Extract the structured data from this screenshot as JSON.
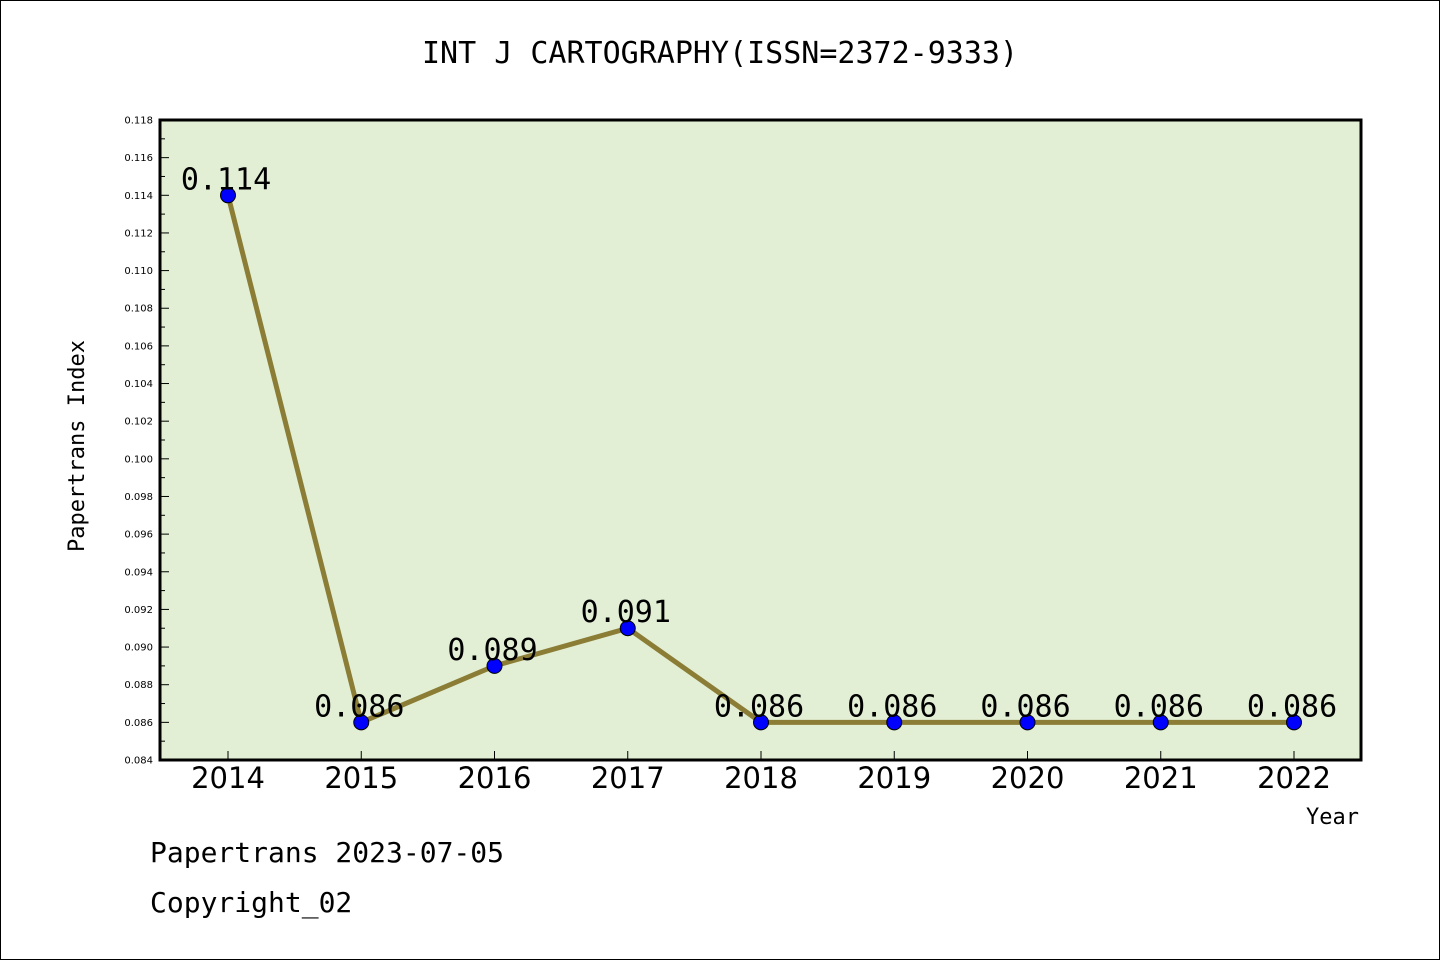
{
  "chart_data": {
    "type": "line",
    "title": "INT J CARTOGRAPHY(ISSN=2372-9333)",
    "xlabel": "Year",
    "ylabel": "Papertrans Index",
    "categories": [
      "2014",
      "2015",
      "2016",
      "2017",
      "2018",
      "2019",
      "2020",
      "2021",
      "2022"
    ],
    "series": [
      {
        "values": [
          0.114,
          0.086,
          0.089,
          0.091,
          0.086,
          0.086,
          0.086,
          0.086,
          0.086
        ],
        "data_labels": [
          "0.114",
          "0.086",
          "0.089",
          "0.091",
          "0.086",
          "0.086",
          "0.086",
          "0.086",
          "0.086"
        ]
      }
    ],
    "ylim": [
      0.084,
      0.118
    ],
    "yticks": [
      "0.084",
      "0.086",
      "0.088",
      "0.090",
      "0.092",
      "0.094",
      "0.096",
      "0.098",
      "0.100",
      "0.102",
      "0.104",
      "0.106",
      "0.108",
      "0.110",
      "0.112",
      "0.114",
      "0.116",
      "0.118"
    ],
    "grid": false,
    "colors": {
      "plot_background": "#e2efd5",
      "line": "#8b7d35",
      "marker": "#0000ff"
    }
  },
  "footer": {
    "date_text": "Papertrans 2023-07-05",
    "copyright_text": "Copyright_02"
  }
}
